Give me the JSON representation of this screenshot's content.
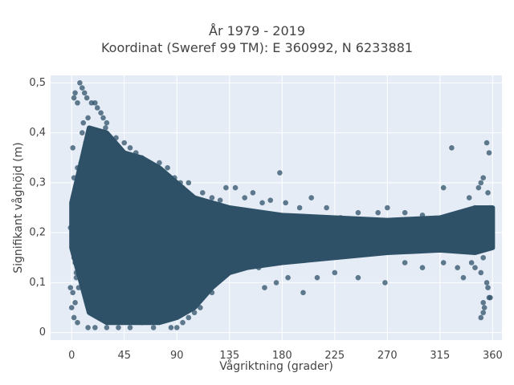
{
  "chart_data": {
    "type": "scatter",
    "title": "År 1979 - 2019",
    "subtitle": "Koordinat (Sweref 99 TM): E 360992, N 6233881",
    "xlabel": "Vågriktning (grader)",
    "ylabel": "Signifikant våghöjd (m)",
    "xlim": [
      -18,
      368
    ],
    "ylim": [
      -0.015,
      0.515
    ],
    "x_ticks": [
      0,
      45,
      90,
      135,
      180,
      225,
      270,
      315,
      360
    ],
    "y_ticks": [
      0,
      0.1,
      0.2,
      0.3,
      0.4,
      0.5
    ],
    "x_tick_labels": [
      "0",
      "45",
      "90",
      "135",
      "180",
      "225",
      "270",
      "315",
      "360"
    ],
    "y_tick_labels": [
      "0",
      "0,1",
      "0,2",
      "0,3",
      "0,4",
      "0,5"
    ],
    "grid": true,
    "legend": "none",
    "colors": {
      "marker": "#2f5168",
      "plot_bg": "#e5ecf6",
      "grid": "#ffffff"
    },
    "envelope": [
      {
        "x": 0,
        "low": 0.17,
        "high": 0.26
      },
      {
        "x": 15,
        "low": 0.04,
        "high": 0.41
      },
      {
        "x": 30,
        "low": 0.02,
        "high": 0.4
      },
      {
        "x": 45,
        "low": 0.02,
        "high": 0.36
      },
      {
        "x": 60,
        "low": 0.02,
        "high": 0.35
      },
      {
        "x": 75,
        "low": 0.02,
        "high": 0.33
      },
      {
        "x": 90,
        "low": 0.03,
        "high": 0.3
      },
      {
        "x": 105,
        "low": 0.05,
        "high": 0.27
      },
      {
        "x": 120,
        "low": 0.09,
        "high": 0.26
      },
      {
        "x": 135,
        "low": 0.12,
        "high": 0.25
      },
      {
        "x": 150,
        "low": 0.13,
        "high": 0.245
      },
      {
        "x": 180,
        "low": 0.14,
        "high": 0.235
      },
      {
        "x": 225,
        "low": 0.15,
        "high": 0.23
      },
      {
        "x": 270,
        "low": 0.16,
        "high": 0.225
      },
      {
        "x": 315,
        "low": 0.165,
        "high": 0.23
      },
      {
        "x": 345,
        "low": 0.16,
        "high": 0.25
      },
      {
        "x": 360,
        "low": 0.17,
        "high": 0.25
      }
    ],
    "points": [
      [
        7,
        0.5
      ],
      [
        9,
        0.49
      ],
      [
        11,
        0.48
      ],
      [
        3,
        0.48
      ],
      [
        13,
        0.47
      ],
      [
        2,
        0.47
      ],
      [
        17,
        0.46
      ],
      [
        20,
        0.46
      ],
      [
        5,
        0.46
      ],
      [
        22,
        0.45
      ],
      [
        25,
        0.44
      ],
      [
        14,
        0.43
      ],
      [
        27,
        0.43
      ],
      [
        30,
        0.42
      ],
      [
        10,
        0.42
      ],
      [
        29,
        0.41
      ],
      [
        38,
        0.39
      ],
      [
        45,
        0.38
      ],
      [
        9,
        0.4
      ],
      [
        12,
        0.38
      ],
      [
        18,
        0.37
      ],
      [
        1,
        0.37
      ],
      [
        50,
        0.37
      ],
      [
        55,
        0.36
      ],
      [
        60,
        0.35
      ],
      [
        75,
        0.34
      ],
      [
        82,
        0.33
      ],
      [
        88,
        0.31
      ],
      [
        93,
        0.3
      ],
      [
        95,
        0.29
      ],
      [
        100,
        0.3
      ],
      [
        8,
        0.34
      ],
      [
        5,
        0.33
      ],
      [
        12,
        0.33
      ],
      [
        9,
        0.31
      ],
      [
        2,
        0.31
      ],
      [
        7,
        0.3
      ],
      [
        112,
        0.28
      ],
      [
        120,
        0.27
      ],
      [
        127,
        0.265
      ],
      [
        132,
        0.29
      ],
      [
        140,
        0.29
      ],
      [
        148,
        0.27
      ],
      [
        155,
        0.28
      ],
      [
        163,
        0.26
      ],
      [
        170,
        0.265
      ],
      [
        178,
        0.32
      ],
      [
        183,
        0.26
      ],
      [
        195,
        0.25
      ],
      [
        205,
        0.27
      ],
      [
        218,
        0.25
      ],
      [
        230,
        0.23
      ],
      [
        245,
        0.24
      ],
      [
        262,
        0.24
      ],
      [
        270,
        0.25
      ],
      [
        285,
        0.24
      ],
      [
        300,
        0.235
      ],
      [
        318,
        0.29
      ],
      [
        325,
        0.37
      ],
      [
        336,
        0.24
      ],
      [
        340,
        0.27
      ],
      [
        345,
        0.25
      ],
      [
        348,
        0.29
      ],
      [
        350,
        0.3
      ],
      [
        352,
        0.31
      ],
      [
        355,
        0.38
      ],
      [
        357,
        0.36
      ],
      [
        356,
        0.28
      ],
      [
        344,
        0.23
      ],
      [
        358,
        0.25
      ],
      [
        152,
        0.15
      ],
      [
        160,
        0.13
      ],
      [
        165,
        0.09
      ],
      [
        175,
        0.1
      ],
      [
        185,
        0.11
      ],
      [
        198,
        0.08
      ],
      [
        210,
        0.11
      ],
      [
        225,
        0.12
      ],
      [
        245,
        0.11
      ],
      [
        268,
        0.1
      ],
      [
        285,
        0.14
      ],
      [
        300,
        0.13
      ],
      [
        318,
        0.14
      ],
      [
        330,
        0.13
      ],
      [
        335,
        0.11
      ],
      [
        342,
        0.14
      ],
      [
        345,
        0.13
      ],
      [
        350,
        0.12
      ],
      [
        352,
        0.15
      ],
      [
        355,
        0.1
      ],
      [
        356,
        0.09
      ],
      [
        357,
        0.07
      ],
      [
        358,
        0.07
      ],
      [
        352,
        0.06
      ],
      [
        353,
        0.05
      ],
      [
        350,
        0.03
      ],
      [
        352,
        0.04
      ],
      [
        120,
        0.08
      ],
      [
        110,
        0.05
      ],
      [
        105,
        0.04
      ],
      [
        100,
        0.03
      ],
      [
        95,
        0.02
      ],
      [
        90,
        0.01
      ],
      [
        85,
        0.01
      ],
      [
        70,
        0.01
      ],
      [
        60,
        0.02
      ],
      [
        50,
        0.01
      ],
      [
        40,
        0.01
      ],
      [
        30,
        0.01
      ],
      [
        20,
        0.01
      ],
      [
        14,
        0.01
      ],
      [
        5,
        0.02
      ],
      [
        2,
        0.03
      ],
      [
        0,
        0.05
      ],
      [
        3,
        0.06
      ],
      [
        1,
        0.08
      ],
      [
        6,
        0.09
      ],
      [
        4,
        0.12
      ],
      [
        2,
        0.15
      ],
      [
        3,
        0.14
      ],
      [
        8,
        0.22
      ],
      [
        6,
        0.13
      ],
      [
        4,
        0.11
      ],
      [
        -1,
        0.09
      ],
      [
        1,
        0.22
      ],
      [
        -1,
        0.21
      ]
    ]
  }
}
